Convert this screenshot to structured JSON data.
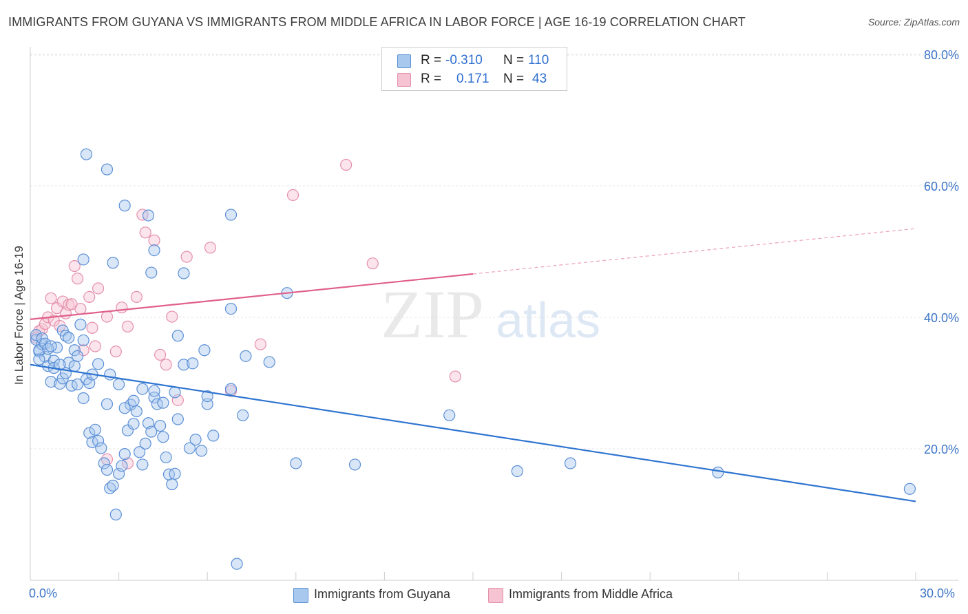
{
  "title": "IMMIGRANTS FROM GUYANA VS IMMIGRANTS FROM MIDDLE AFRICA IN LABOR FORCE | AGE 16-19 CORRELATION CHART",
  "source": "Source: ZipAtlas.com",
  "watermark": {
    "zip": "ZIP",
    "atlas": "atlas"
  },
  "colors": {
    "blue_fill": "#a9c8ee",
    "blue_stroke": "#5b8fd6",
    "blue_line": "#2e74d0",
    "pink_fill": "#f6c3d3",
    "pink_stroke": "#e58fab",
    "pink_line": "#e0608a",
    "axis_text": "#3c75c8",
    "grid": "#e6e6e6"
  },
  "stats": [
    {
      "r_label": "R =",
      "r_value": "-0.310",
      "n_label": "N =",
      "n_value": "110"
    },
    {
      "r_label": "R =",
      "r_value": "0.171",
      "n_label": "N =",
      "n_value": "43"
    }
  ],
  "legend": [
    "Immigrants from Guyana",
    "Immigrants from Middle Africa"
  ],
  "x_tick_labels": {
    "left": "0.0%",
    "right": "30.0%"
  },
  "chart_data": {
    "type": "scatter",
    "title": "IMMIGRANTS FROM GUYANA VS IMMIGRANTS FROM MIDDLE AFRICA IN LABOR FORCE | AGE 16-19 CORRELATION CHART",
    "xlabel": "",
    "ylabel": "In Labor Force | Age 16-19",
    "xlim": [
      0,
      30
    ],
    "ylim": [
      0,
      82
    ],
    "y_ticks": [
      20,
      40,
      60,
      80
    ],
    "y_tick_labels": [
      "20.0%",
      "40.0%",
      "60.0%",
      "80.0%"
    ],
    "legend_position": "bottom-center",
    "series": [
      {
        "name": "Immigrants from Guyana",
        "r": -0.31,
        "n": 110,
        "trend": {
          "x": [
            0.0,
            30.0
          ],
          "y": [
            32.8,
            12.0
          ],
          "solid_to": 30.0
        },
        "points": [
          [
            0.2,
            36.6
          ],
          [
            0.3,
            34.8
          ],
          [
            0.4,
            35.9
          ],
          [
            0.5,
            34.0
          ],
          [
            0.6,
            32.6
          ],
          [
            0.7,
            30.2
          ],
          [
            0.8,
            33.4
          ],
          [
            0.9,
            35.4
          ],
          [
            1.0,
            29.9
          ],
          [
            1.1,
            30.7
          ],
          [
            1.2,
            31.5
          ],
          [
            1.3,
            33.1
          ],
          [
            1.4,
            29.6
          ],
          [
            1.5,
            35.0
          ],
          [
            1.6,
            29.8
          ],
          [
            1.7,
            38.9
          ],
          [
            1.8,
            27.7
          ],
          [
            1.9,
            30.6
          ],
          [
            2.0,
            22.4
          ],
          [
            2.1,
            21.0
          ],
          [
            2.2,
            22.9
          ],
          [
            2.3,
            21.2
          ],
          [
            2.4,
            20.1
          ],
          [
            2.5,
            17.8
          ],
          [
            2.6,
            16.8
          ],
          [
            2.7,
            14.0
          ],
          [
            2.8,
            14.4
          ],
          [
            2.9,
            10.0
          ],
          [
            3.0,
            16.2
          ],
          [
            3.1,
            17.4
          ],
          [
            3.2,
            19.2
          ],
          [
            3.3,
            22.8
          ],
          [
            3.4,
            26.7
          ],
          [
            3.5,
            23.8
          ],
          [
            3.6,
            25.7
          ],
          [
            3.7,
            19.5
          ],
          [
            3.8,
            17.6
          ],
          [
            3.9,
            20.8
          ],
          [
            4.0,
            23.9
          ],
          [
            4.1,
            22.6
          ],
          [
            4.2,
            27.8
          ],
          [
            4.3,
            26.8
          ],
          [
            4.4,
            23.5
          ],
          [
            4.5,
            21.8
          ],
          [
            4.6,
            18.7
          ],
          [
            4.7,
            16.1
          ],
          [
            4.8,
            14.6
          ],
          [
            4.9,
            16.2
          ],
          [
            5.0,
            24.5
          ],
          [
            5.2,
            32.8
          ],
          [
            5.4,
            20.1
          ],
          [
            5.6,
            21.4
          ],
          [
            5.8,
            19.7
          ],
          [
            6.0,
            26.8
          ],
          [
            6.2,
            22.0
          ],
          [
            6.8,
            29.1
          ],
          [
            7.2,
            25.1
          ],
          [
            8.1,
            33.2
          ],
          [
            9.0,
            17.8
          ],
          [
            11.0,
            17.6
          ],
          [
            14.2,
            25.1
          ],
          [
            16.5,
            16.6
          ],
          [
            18.3,
            17.8
          ],
          [
            23.3,
            16.4
          ],
          [
            29.8,
            13.9
          ],
          [
            0.2,
            37.3
          ],
          [
            0.3,
            35.0
          ],
          [
            0.3,
            33.6
          ],
          [
            0.4,
            36.8
          ],
          [
            0.5,
            36.0
          ],
          [
            0.6,
            35.2
          ],
          [
            0.7,
            35.6
          ],
          [
            0.8,
            32.3
          ],
          [
            1.0,
            32.8
          ],
          [
            1.1,
            38.0
          ],
          [
            1.2,
            37.2
          ],
          [
            1.3,
            36.9
          ],
          [
            1.5,
            32.6
          ],
          [
            1.6,
            34.1
          ],
          [
            1.8,
            36.5
          ],
          [
            2.0,
            30.0
          ],
          [
            2.1,
            31.3
          ],
          [
            2.3,
            32.9
          ],
          [
            2.6,
            26.8
          ],
          [
            2.7,
            31.3
          ],
          [
            3.0,
            29.8
          ],
          [
            3.2,
            26.2
          ],
          [
            3.5,
            27.3
          ],
          [
            3.8,
            29.1
          ],
          [
            4.2,
            28.8
          ],
          [
            4.5,
            27.0
          ],
          [
            4.9,
            28.6
          ],
          [
            5.0,
            37.2
          ],
          [
            5.5,
            33.0
          ],
          [
            5.9,
            35.0
          ],
          [
            6.0,
            28.0
          ],
          [
            6.8,
            41.3
          ],
          [
            8.7,
            43.7
          ],
          [
            2.8,
            48.3
          ],
          [
            1.8,
            48.8
          ],
          [
            3.2,
            57.0
          ],
          [
            4.0,
            55.5
          ],
          [
            5.2,
            46.7
          ],
          [
            6.8,
            55.6
          ],
          [
            1.9,
            64.8
          ],
          [
            2.6,
            62.5
          ],
          [
            4.1,
            46.8
          ],
          [
            4.2,
            50.2
          ],
          [
            7.3,
            34.1
          ],
          [
            7.0,
            2.5
          ]
        ]
      },
      {
        "name": "Immigrants from Middle Africa",
        "r": 0.171,
        "n": 43,
        "trend": {
          "x": [
            0.0,
            30.0
          ],
          "y": [
            39.7,
            53.5
          ],
          "solid_to": 15.0
        },
        "points": [
          [
            0.2,
            36.9
          ],
          [
            0.3,
            37.9
          ],
          [
            0.4,
            38.2
          ],
          [
            0.5,
            39.0
          ],
          [
            0.6,
            40.0
          ],
          [
            0.7,
            42.9
          ],
          [
            0.8,
            39.5
          ],
          [
            0.9,
            41.4
          ],
          [
            1.0,
            38.7
          ],
          [
            1.1,
            42.4
          ],
          [
            1.2,
            40.6
          ],
          [
            1.3,
            41.9
          ],
          [
            1.4,
            42.0
          ],
          [
            1.5,
            47.8
          ],
          [
            1.6,
            45.9
          ],
          [
            1.7,
            41.3
          ],
          [
            1.8,
            35.0
          ],
          [
            2.0,
            43.1
          ],
          [
            2.1,
            38.4
          ],
          [
            2.2,
            35.6
          ],
          [
            2.3,
            44.4
          ],
          [
            2.6,
            40.1
          ],
          [
            2.9,
            34.8
          ],
          [
            3.1,
            41.5
          ],
          [
            3.3,
            38.6
          ],
          [
            3.6,
            43.1
          ],
          [
            3.8,
            55.6
          ],
          [
            3.9,
            52.9
          ],
          [
            4.2,
            51.7
          ],
          [
            4.4,
            34.3
          ],
          [
            4.6,
            32.8
          ],
          [
            4.8,
            40.1
          ],
          [
            5.0,
            27.4
          ],
          [
            5.3,
            49.2
          ],
          [
            6.1,
            50.6
          ],
          [
            6.8,
            28.8
          ],
          [
            7.8,
            35.9
          ],
          [
            8.9,
            58.6
          ],
          [
            10.7,
            63.2
          ],
          [
            11.6,
            48.2
          ],
          [
            14.4,
            31.0
          ],
          [
            2.6,
            18.4
          ],
          [
            3.3,
            17.8
          ]
        ]
      }
    ]
  }
}
